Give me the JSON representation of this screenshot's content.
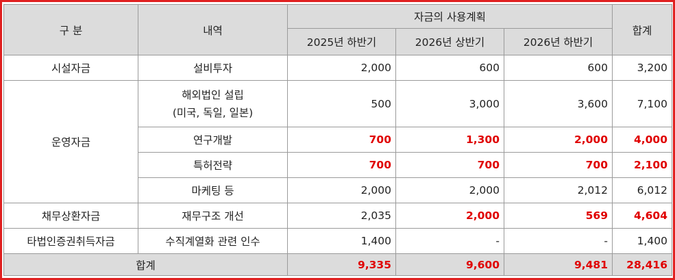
{
  "header": {
    "category": "구 분",
    "detail": "내역",
    "plan_group": "자금의 사용계획",
    "periods": [
      "2025년 하반기",
      "2026년 상반기",
      "2026년 하반기"
    ],
    "total": "합계"
  },
  "rows": [
    {
      "category": "시설자금",
      "detail": [
        "설비투자"
      ],
      "values": [
        "2,000",
        "600",
        "600",
        "3,200"
      ],
      "highlight": [
        false,
        false,
        false,
        false
      ]
    },
    {
      "category": "운영자금",
      "detail": [
        "해외법인 설립",
        "(미국, 독일, 일본)"
      ],
      "values": [
        "500",
        "3,000",
        "3,600",
        "7,100"
      ],
      "highlight": [
        false,
        false,
        false,
        false
      ]
    },
    {
      "category": "",
      "detail": [
        "연구개발"
      ],
      "values": [
        "700",
        "1,300",
        "2,000",
        "4,000"
      ],
      "highlight": [
        true,
        true,
        true,
        true
      ]
    },
    {
      "category": "",
      "detail": [
        "특허전략"
      ],
      "values": [
        "700",
        "700",
        "700",
        "2,100"
      ],
      "highlight": [
        true,
        true,
        true,
        true
      ]
    },
    {
      "category": "",
      "detail": [
        "마케팅 등"
      ],
      "values": [
        "2,000",
        "2,000",
        "2,012",
        "6,012"
      ],
      "highlight": [
        false,
        false,
        false,
        false
      ]
    },
    {
      "category": "채무상환자금",
      "detail": [
        "재무구조 개선"
      ],
      "values": [
        "2,035",
        "2,000",
        "569",
        "4,604"
      ],
      "highlight": [
        false,
        true,
        true,
        true
      ]
    },
    {
      "category": "타법인증권취득자금",
      "detail": [
        "수직계열화 관련 인수"
      ],
      "values": [
        "1,400",
        "-",
        "-",
        "1,400"
      ],
      "highlight": [
        false,
        false,
        false,
        false
      ]
    }
  ],
  "total_row": {
    "label": "합계",
    "values": [
      "9,335",
      "9,600",
      "9,481",
      "28,416"
    ]
  },
  "colors": {
    "highlight": "#e00000",
    "header_bg": "#dcdcdc",
    "frame": "#e02020"
  }
}
